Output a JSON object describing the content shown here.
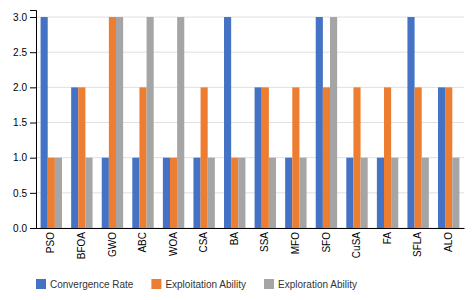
{
  "chart_data": {
    "type": "bar",
    "categories": [
      "PSO",
      "BFOA",
      "GWO",
      "ABC",
      "WOA",
      "CSA",
      "BA",
      "SSA",
      "MFO",
      "SFO",
      "CuSA",
      "FA",
      "SFLA",
      "ALO"
    ],
    "series": [
      {
        "name": "Convergence Rate",
        "color": "#4472C4",
        "values": [
          3,
          2,
          1,
          1,
          1,
          1,
          3,
          2,
          1,
          3,
          1,
          1,
          3,
          2
        ]
      },
      {
        "name": "Exploitation Ability",
        "color": "#ED7D31",
        "values": [
          1,
          2,
          3,
          2,
          1,
          2,
          1,
          2,
          2,
          2,
          2,
          2,
          2,
          2
        ]
      },
      {
        "name": "Exploration Ability",
        "color": "#A5A5A5",
        "values": [
          1,
          1,
          3,
          3,
          3,
          1,
          1,
          1,
          1,
          3,
          1,
          1,
          1,
          1
        ]
      }
    ],
    "ylim": [
      0,
      3.1
    ],
    "yticks": [
      {
        "value": 0,
        "label": "0.0"
      },
      0.5,
      {
        "value": 1,
        "label": "1.0"
      },
      1.5,
      {
        "value": 2,
        "label": "2.0"
      },
      2.5,
      {
        "value": 3,
        "label": "3.0"
      }
    ],
    "grid": true,
    "legend": "bottom"
  }
}
